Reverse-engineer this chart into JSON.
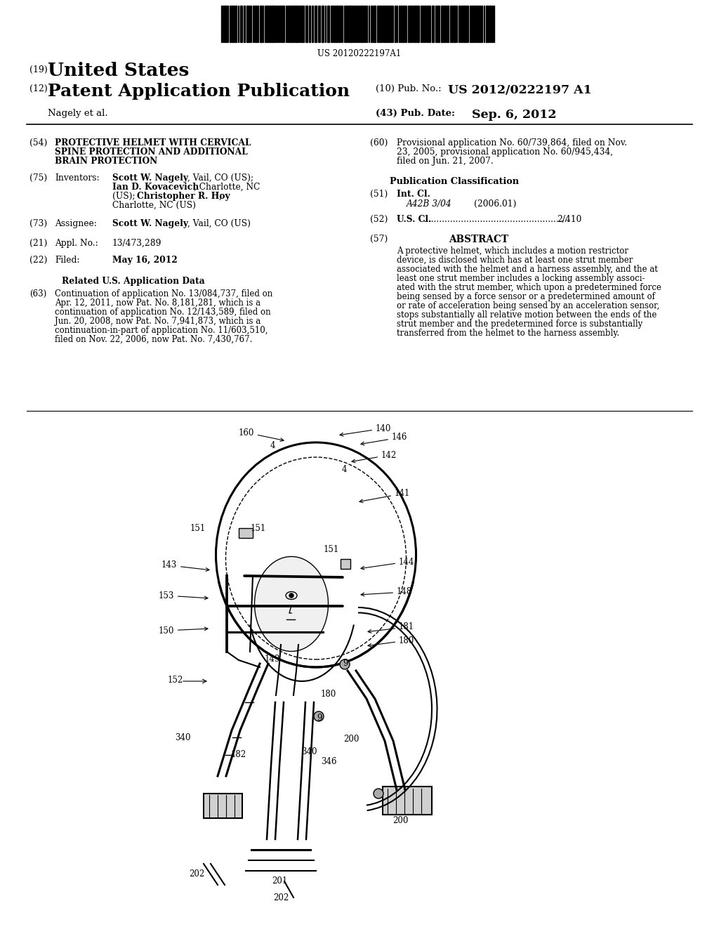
{
  "background_color": "#ffffff",
  "barcode_text": "US 20120222197A1",
  "header_country_label": "(19)",
  "header_country": "United States",
  "header_type_label": "(12)",
  "header_type": "Patent Application Publication",
  "header_pub_no_label": "(10) Pub. No.:",
  "header_pub_no": "US 2012/0222197 A1",
  "header_author": "Nagely et al.",
  "header_pub_date_label": "(43) Pub. Date:",
  "header_pub_date": "Sep. 6, 2012",
  "title_num": "(54)",
  "title_line1": "PROTECTIVE HELMET WITH CERVICAL",
  "title_line2": "SPINE PROTECTION AND ADDITIONAL",
  "title_line3": "BRAIN PROTECTION",
  "inventors_num": "(75)",
  "inventors_label": "Inventors:",
  "assignee_num": "(73)",
  "assignee_label": "Assignee:",
  "assignee_val": "Scott W. Nagely, Vail, CO (US)",
  "appl_num": "(21)",
  "appl_label": "Appl. No.:",
  "appl_val": "13/473,289",
  "filed_num": "(22)",
  "filed_label": "Filed:",
  "filed_val": "May 16, 2012",
  "related_title": "Related U.S. Application Data",
  "related_num": "(63)",
  "related_line1": "Continuation of application No. 13/084,737, filed on",
  "related_line2": "Apr. 12, 2011, now Pat. No. 8,181,281, which is a",
  "related_line3": "continuation of application No. 12/143,589, filed on",
  "related_line4": "Jun. 20, 2008, now Pat. No. 7,941,873, which is a",
  "related_line5": "continuation-in-part of application No. 11/603,510,",
  "related_line6": "filed on Nov. 22, 2006, now Pat. No. 7,430,767.",
  "prov_num": "(60)",
  "prov_line1": "Provisional application No. 60/739,864, filed on Nov.",
  "prov_line2": "23, 2005, provisional application No. 60/945,434,",
  "prov_line3": "filed on Jun. 21, 2007.",
  "pub_class_title": "Publication Classification",
  "int_cl_num": "(51)",
  "int_cl_label": "Int. Cl.",
  "int_cl_val": "A42B 3/04",
  "int_cl_date": "(2006.01)",
  "us_cl_num": "(52)",
  "us_cl_label": "U.S. Cl.",
  "us_cl_dots": ".....................................................",
  "us_cl_val": "2/410",
  "abstract_num": "(57)",
  "abstract_title": "ABSTRACT",
  "abstract_line1": "A protective helmet, which includes a motion restrictor",
  "abstract_line2": "device, is disclosed which has at least one strut member",
  "abstract_line3": "associated with the helmet and a harness assembly, and the at",
  "abstract_line4": "least one strut member includes a locking assembly associ-",
  "abstract_line5": "ated with the strut member, which upon a predetermined force",
  "abstract_line6": "being sensed by a force sensor or a predetermined amount of",
  "abstract_line7": "or rate of acceleration being sensed by an acceleration sensor,",
  "abstract_line8": "stops substantially all relative motion between the ends of the",
  "abstract_line9": "strut member and the predetermined force is substantially",
  "abstract_line10": "transferred from the helmet to the harness assembly."
}
